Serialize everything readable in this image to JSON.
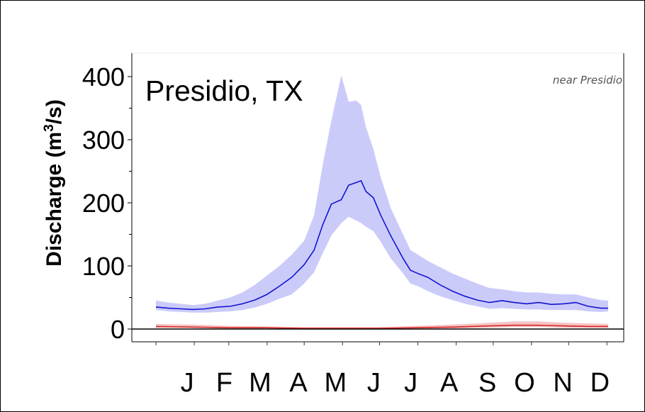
{
  "chart_data": {
    "type": "line",
    "title": "",
    "subtitle": "",
    "annotation_main": "Presidio, TX",
    "annotation_note": "near Presidio",
    "xlabel": "",
    "ylabel": "Discharge (m³/s)",
    "ylabel_parts": {
      "pre": "Discharge (m",
      "sup": "3",
      "post": "/s)"
    },
    "x_range": [
      0,
      366
    ],
    "ylim": [
      0,
      400
    ],
    "y_ticks": [
      0,
      100,
      200,
      300,
      400
    ],
    "month_labels": [
      {
        "label": "J",
        "x": 15
      },
      {
        "label": "F",
        "x": 45
      },
      {
        "label": "M",
        "x": 74
      },
      {
        "label": "A",
        "x": 105
      },
      {
        "label": "M",
        "x": 135
      },
      {
        "label": "J",
        "x": 166
      },
      {
        "label": "J",
        "x": 196
      },
      {
        "label": "A",
        "x": 227
      },
      {
        "label": "S",
        "x": 258
      },
      {
        "label": "O",
        "x": 288
      },
      {
        "label": "N",
        "x": 319
      },
      {
        "label": "D",
        "x": 349
      }
    ],
    "x_minor_ticks": [
      0,
      31,
      59,
      90,
      120,
      151,
      181,
      212,
      243,
      273,
      304,
      334,
      365
    ],
    "grid": false,
    "colors": {
      "series1_line": "#1414d2",
      "series1_band": "#c8c8fa",
      "series2_line": "#d22828",
      "series2_band": "#f4b4b4",
      "zero_line": "#000000"
    },
    "series": [
      {
        "x": [
          0,
          10,
          20,
          30,
          40,
          50,
          60,
          70,
          80,
          90,
          100,
          110,
          120,
          128,
          135,
          142,
          150,
          156,
          162,
          166,
          170,
          176,
          182,
          190,
          200,
          206,
          212,
          220,
          230,
          240,
          250,
          260,
          270,
          280,
          290,
          300,
          310,
          320,
          330,
          340,
          350,
          360,
          366
        ],
        "values": [
          35,
          33,
          32,
          31,
          32,
          35,
          36,
          40,
          46,
          55,
          68,
          82,
          102,
          125,
          165,
          198,
          205,
          228,
          232,
          235,
          218,
          208,
          180,
          148,
          112,
          93,
          88,
          82,
          70,
          60,
          52,
          46,
          42,
          45,
          42,
          40,
          42,
          39,
          40,
          42,
          36,
          33,
          33
        ],
        "lower": [
          30,
          28,
          27,
          26,
          26,
          27,
          28,
          30,
          34,
          40,
          48,
          55,
          72,
          90,
          120,
          148,
          168,
          178,
          172,
          168,
          162,
          155,
          138,
          112,
          88,
          72,
          68,
          60,
          52,
          46,
          40,
          36,
          32,
          33,
          32,
          31,
          31,
          30,
          30,
          30,
          28,
          27,
          28
        ],
        "upper": [
          45,
          42,
          40,
          38,
          40,
          45,
          50,
          58,
          70,
          85,
          100,
          118,
          140,
          180,
          260,
          330,
          402,
          360,
          362,
          355,
          320,
          285,
          240,
          192,
          150,
          125,
          118,
          108,
          98,
          88,
          80,
          72,
          65,
          63,
          60,
          58,
          58,
          56,
          55,
          55,
          50,
          46,
          45
        ]
      },
      {
        "x": [
          0,
          30,
          60,
          90,
          120,
          150,
          180,
          210,
          240,
          270,
          290,
          310,
          330,
          350,
          366
        ],
        "values": [
          4,
          3,
          2,
          2,
          1,
          1,
          1,
          2,
          3,
          5,
          6,
          6,
          5,
          4,
          4
        ],
        "lower": [
          2,
          2,
          1,
          1,
          0,
          0,
          0,
          1,
          1,
          2,
          3,
          3,
          2,
          2,
          2
        ],
        "upper": [
          8,
          7,
          5,
          4,
          3,
          3,
          3,
          5,
          7,
          10,
          12,
          12,
          10,
          9,
          8
        ]
      }
    ]
  }
}
